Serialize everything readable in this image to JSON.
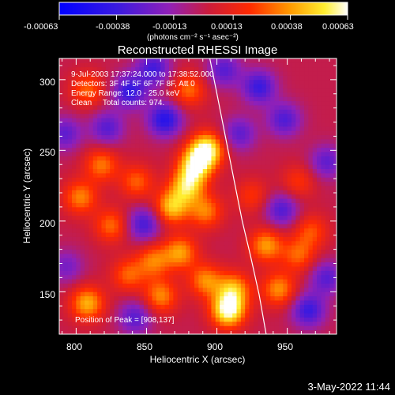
{
  "colorbar": {
    "tick_labels": [
      "-0.00063",
      "-0.00038",
      "-0.00013",
      "0.00013",
      "0.00038",
      "0.00063"
    ],
    "tick_values": [
      -0.00063,
      -0.00038,
      -0.00013,
      0.00013,
      0.00038,
      0.00063
    ],
    "units": "(photons cm⁻² s⁻¹ asec⁻²)",
    "range": [
      -0.00063,
      0.00063
    ]
  },
  "plot": {
    "title": "Reconstructed RHESSI Image",
    "xlabel": "Heliocentric X (arcsec)",
    "ylabel": "Heliocentric Y (arcsec)",
    "annotation_lines": [
      "9-Jul-2003 17:37:24.000 to 17:38:52.000",
      "Detectors: 3F 4F 5F 6F 7F 8F, Att 0",
      "Energy Range: 12.0 - 25.0 keV",
      "Clean     Total counts: 974."
    ],
    "peak_label": "Position of Peak = [908,137]"
  },
  "footer": {
    "date": "3-May-2022 11:44"
  },
  "colors": {
    "background": "#000000",
    "text": "#ffffff",
    "limb": "#ffffff"
  },
  "chart_data": {
    "type": "heatmap",
    "title": "Reconstructed RHESSI Image",
    "xlabel": "Heliocentric X (arcsec)",
    "ylabel": "Heliocentric Y (arcsec)",
    "xlim": [
      788,
      985
    ],
    "ylim": [
      120,
      315
    ],
    "x_ticks": [
      800,
      850,
      900,
      950
    ],
    "y_ticks": [
      150,
      200,
      250,
      300
    ],
    "colormap": "blue-purple-red-yellow-white",
    "value_range": [
      -0.00063,
      0.00063
    ],
    "peak_position": [
      908,
      137
    ],
    "limb_curve": {
      "x": [
        895,
        900,
        906,
        912,
        918,
        924,
        930,
        935
      ],
      "y": [
        315,
        290,
        260,
        230,
        200,
        175,
        148,
        120
      ]
    },
    "hot_spots": [
      {
        "x": 885,
        "y": 240,
        "value": 0.00052
      },
      {
        "x": 893,
        "y": 251,
        "value": 0.00057
      },
      {
        "x": 868,
        "y": 210,
        "value": 0.00045
      },
      {
        "x": 879,
        "y": 225,
        "value": 0.00047
      },
      {
        "x": 874,
        "y": 178,
        "value": 0.00038
      },
      {
        "x": 855,
        "y": 172,
        "value": 0.00032
      },
      {
        "x": 908,
        "y": 137,
        "value": 0.00063
      },
      {
        "x": 912,
        "y": 152,
        "value": 0.0004
      },
      {
        "x": 892,
        "y": 158,
        "value": 0.00035
      },
      {
        "x": 818,
        "y": 240,
        "value": 0.00032
      },
      {
        "x": 803,
        "y": 217,
        "value": 0.00034
      },
      {
        "x": 825,
        "y": 197,
        "value": 0.0003
      },
      {
        "x": 837,
        "y": 162,
        "value": 0.00028
      },
      {
        "x": 808,
        "y": 142,
        "value": 0.00042
      },
      {
        "x": 860,
        "y": 147,
        "value": 0.00035
      },
      {
        "x": 843,
        "y": 228,
        "value": 0.00028
      },
      {
        "x": 808,
        "y": 293,
        "value": 0.00028
      },
      {
        "x": 880,
        "y": 293,
        "value": 0.0003
      },
      {
        "x": 892,
        "y": 207,
        "value": 0.00033
      },
      {
        "x": 935,
        "y": 183,
        "value": 0.00038
      },
      {
        "x": 944,
        "y": 152,
        "value": 0.00036
      },
      {
        "x": 958,
        "y": 176,
        "value": 0.00028
      },
      {
        "x": 967,
        "y": 193,
        "value": 0.00025
      },
      {
        "x": 958,
        "y": 228,
        "value": 0.0002
      },
      {
        "x": 925,
        "y": 218,
        "value": 0.0002
      }
    ],
    "cold_spots": [
      {
        "x": 863,
        "y": 272,
        "value": -0.00045
      },
      {
        "x": 838,
        "y": 292,
        "value": -0.0004
      },
      {
        "x": 855,
        "y": 308,
        "value": -0.00035
      },
      {
        "x": 930,
        "y": 295,
        "value": -0.00038
      },
      {
        "x": 948,
        "y": 272,
        "value": -0.00032
      },
      {
        "x": 905,
        "y": 307,
        "value": -0.0003
      },
      {
        "x": 822,
        "y": 266,
        "value": -0.0003
      },
      {
        "x": 792,
        "y": 262,
        "value": -0.00028
      },
      {
        "x": 946,
        "y": 208,
        "value": -0.00032
      },
      {
        "x": 978,
        "y": 242,
        "value": -0.00028
      },
      {
        "x": 965,
        "y": 137,
        "value": -0.00038
      },
      {
        "x": 978,
        "y": 160,
        "value": -0.0003
      },
      {
        "x": 848,
        "y": 198,
        "value": -0.00035
      },
      {
        "x": 842,
        "y": 132,
        "value": -0.0003
      },
      {
        "x": 793,
        "y": 168,
        "value": -0.00022
      },
      {
        "x": 916,
        "y": 262,
        "value": -0.00028
      }
    ]
  }
}
